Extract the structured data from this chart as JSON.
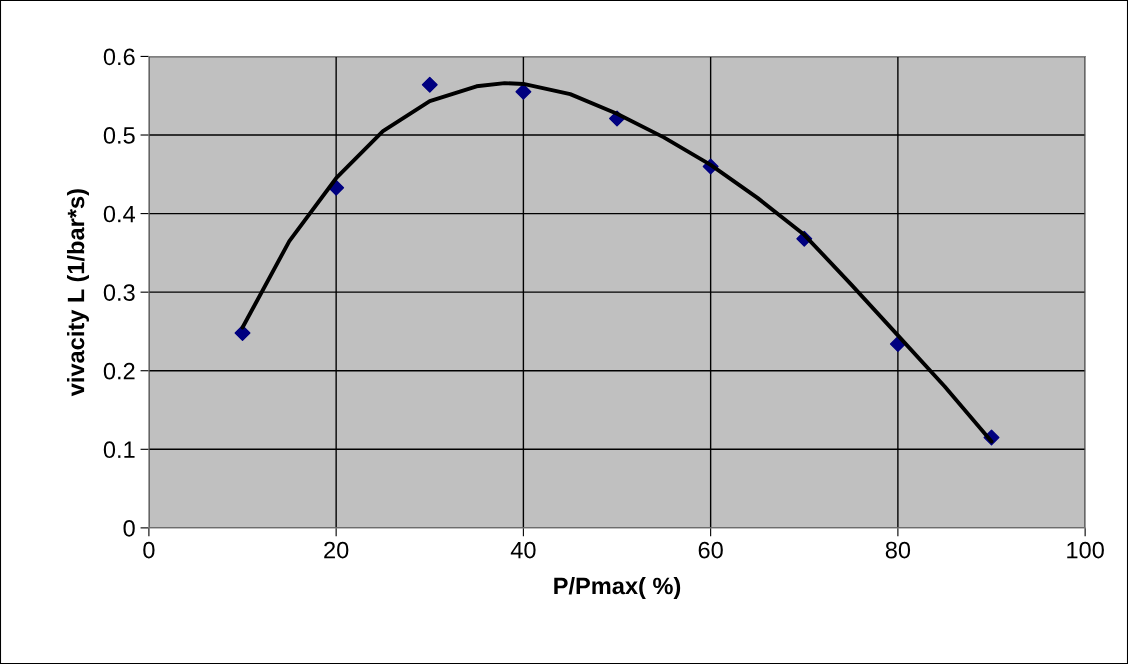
{
  "chart_data": {
    "type": "scatter",
    "xlabel": "P/Pmax( %)",
    "ylabel": "vivacity L (1/bar*s)",
    "xlim": [
      0,
      100
    ],
    "xticks": [
      0,
      20,
      40,
      60,
      80,
      100
    ],
    "ylim": [
      0,
      0.6
    ],
    "yticks": [
      0,
      0.1,
      0.2,
      0.3,
      0.4,
      0.5,
      0.6
    ],
    "grid": true,
    "series": [
      {
        "color": "#000080",
        "marker": "diamond",
        "x": [
          10,
          20,
          30,
          40,
          50,
          60,
          70,
          80,
          90
        ],
        "values": [
          0.248,
          0.433,
          0.564,
          0.555,
          0.521,
          0.46,
          0.368,
          0.234,
          0.115
        ]
      },
      {
        "type": "line",
        "color": "#000000",
        "marker": "none",
        "line_style": "solid",
        "x": [
          10,
          15,
          20,
          25,
          30,
          35,
          38,
          40,
          45,
          50,
          55,
          60,
          65,
          70,
          75,
          80,
          85,
          90
        ],
        "values": [
          0.255,
          0.365,
          0.445,
          0.505,
          0.543,
          0.562,
          0.566,
          0.565,
          0.552,
          0.527,
          0.497,
          0.462,
          0.42,
          0.373,
          0.31,
          0.245,
          0.18,
          0.11
        ]
      }
    ]
  }
}
